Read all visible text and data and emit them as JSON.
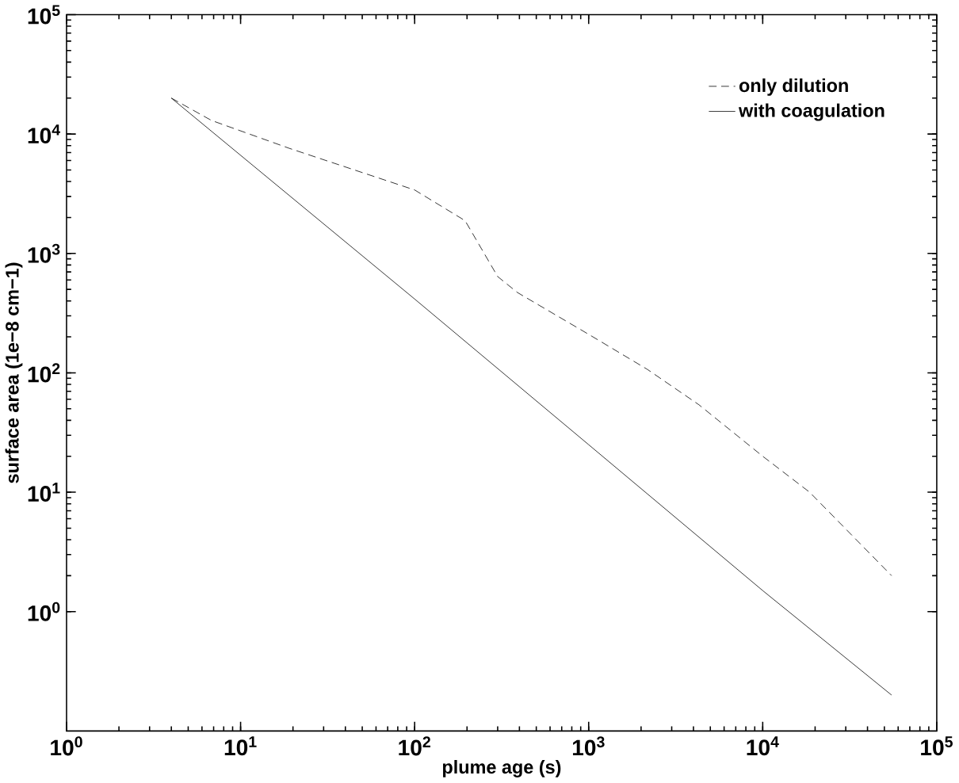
{
  "chart_data": {
    "type": "line",
    "xlabel": "plume age (s)",
    "ylabel": "surface area (1e−8 cm−1)",
    "log": "xy",
    "grid": false,
    "legend": "top right",
    "marker": "none",
    "xlim": [
      1,
      100000
    ],
    "ylim": [
      0.1,
      100000
    ],
    "xticks": [
      {
        "value": 1,
        "label": "10$^{0}$"
      },
      {
        "value": 10,
        "label": "10$^{1}$"
      },
      {
        "value": 100,
        "label": "10$^{2}$"
      },
      {
        "value": 1000,
        "label": "10$^{3}$"
      },
      {
        "value": 10000,
        "label": "10$^{4}$"
      },
      {
        "value": 100000,
        "label": "10$^{5}$"
      }
    ],
    "yticks": [
      {
        "value": 1,
        "label": "10$^{0}$"
      },
      {
        "value": 10,
        "label": "10$^{1}$"
      },
      {
        "value": 100,
        "label": "10$^{2}$"
      },
      {
        "value": 1000,
        "label": "10$^{3}$"
      },
      {
        "value": 10000,
        "label": "10$^{4}$"
      },
      {
        "value": 100000,
        "label": "10$^{5}$"
      }
    ],
    "series": [
      {
        "name": "only dilution",
        "color": "#000000",
        "line_style": "dashed",
        "x": [
          4,
          6.8,
          19,
          100,
          195,
          300,
          390,
          1000,
          2170,
          4300,
          10000,
          18600,
          55000
        ],
        "values": [
          20000,
          13000,
          7600,
          3400,
          1880,
          640,
          470,
          210,
          107,
          54,
          20,
          10,
          2
        ]
      },
      {
        "name": "with coagulation",
        "color": "#000000",
        "line_style": "solid",
        "x": [
          4,
          100,
          1000,
          10000,
          55000
        ],
        "values": [
          20000,
          415,
          25,
          1.5,
          0.2
        ]
      }
    ]
  }
}
